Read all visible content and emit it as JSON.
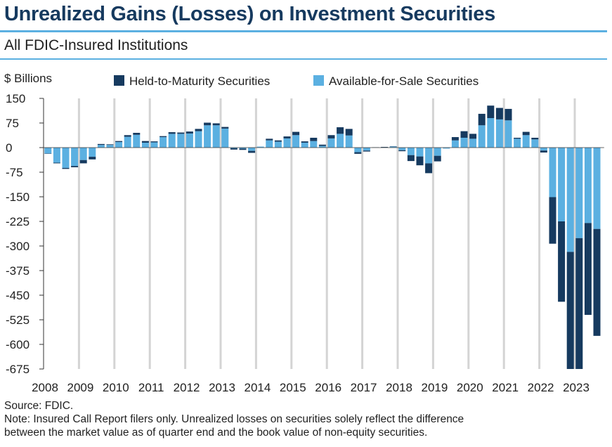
{
  "header": {
    "title": "Unrealized Gains (Losses) on Investment Securities",
    "subtitle": "All FDIC-Insured Institutions"
  },
  "footer": {
    "source": "Source: FDIC.",
    "note_line1": "Note: Insured Call Report filers only. Unrealized losses on securities solely reflect the difference",
    "note_line2": "between the market value as of quarter end and the book value of non-equity securities."
  },
  "colors": {
    "htm": "#163a5f",
    "afs": "#5bb0e1",
    "gridline": "#d4d4d4",
    "accent_rule": "#5bb0e1"
  },
  "chart_data": {
    "type": "bar",
    "stacked": true,
    "ylabel": "$ Billions",
    "ylim": [
      -675,
      150
    ],
    "yticks": [
      150,
      75,
      0,
      -75,
      -150,
      -225,
      -300,
      -375,
      -450,
      -525,
      -600,
      -675
    ],
    "year_labels": [
      "2008",
      "2009",
      "2010",
      "2011",
      "2012",
      "2013",
      "2014",
      "2015",
      "2016",
      "2017",
      "2018",
      "2019",
      "2020",
      "2021",
      "2022",
      "2023"
    ],
    "legend": {
      "position": "top"
    },
    "categories": [
      "2008Q1",
      "2008Q2",
      "2008Q3",
      "2008Q4",
      "2009Q1",
      "2009Q2",
      "2009Q3",
      "2009Q4",
      "2010Q1",
      "2010Q2",
      "2010Q3",
      "2010Q4",
      "2011Q1",
      "2011Q2",
      "2011Q3",
      "2011Q4",
      "2012Q1",
      "2012Q2",
      "2012Q3",
      "2012Q4",
      "2013Q1",
      "2013Q2",
      "2013Q3",
      "2013Q4",
      "2014Q1",
      "2014Q2",
      "2014Q3",
      "2014Q4",
      "2015Q1",
      "2015Q2",
      "2015Q3",
      "2015Q4",
      "2016Q1",
      "2016Q2",
      "2016Q3",
      "2016Q4",
      "2017Q1",
      "2017Q2",
      "2017Q3",
      "2017Q4",
      "2018Q1",
      "2018Q2",
      "2018Q3",
      "2018Q4",
      "2019Q1",
      "2019Q2",
      "2019Q3",
      "2019Q4",
      "2020Q1",
      "2020Q2",
      "2020Q3",
      "2020Q4",
      "2021Q1",
      "2021Q2",
      "2021Q3",
      "2021Q4",
      "2022Q1",
      "2022Q2",
      "2022Q3",
      "2022Q4",
      "2023Q1",
      "2023Q2",
      "2023Q3"
    ],
    "series": [
      {
        "name": "Held-to-Maturity Securities",
        "values": [
          -1,
          -2,
          -3,
          -4,
          -10,
          -8,
          3,
          2,
          3,
          5,
          6,
          5,
          3,
          3,
          5,
          4,
          6,
          7,
          8,
          6,
          5,
          -4,
          -4,
          -6,
          0,
          5,
          4,
          6,
          10,
          4,
          10,
          4,
          10,
          20,
          20,
          -5,
          -3,
          1,
          2,
          1,
          -3,
          -18,
          -27,
          -30,
          -17,
          0,
          10,
          20,
          15,
          35,
          38,
          35,
          35,
          3,
          10,
          5,
          -6,
          -142,
          -245,
          -360,
          -400,
          -280,
          -326
        ]
      },
      {
        "name": "Available-for-Sale Securities",
        "values": [
          -18,
          -46,
          -62,
          -56,
          -38,
          -28,
          8,
          8,
          17,
          33,
          39,
          15,
          16,
          32,
          42,
          42,
          43,
          50,
          68,
          68,
          58,
          -2,
          -3,
          -10,
          3,
          22,
          18,
          28,
          38,
          15,
          20,
          5,
          28,
          42,
          37,
          -14,
          -9,
          0,
          0,
          3,
          -8,
          -23,
          -27,
          -48,
          -25,
          -3,
          22,
          30,
          27,
          68,
          90,
          86,
          83,
          27,
          38,
          25,
          -9,
          -151,
          -225,
          -318,
          -276,
          -230,
          -248
        ]
      }
    ]
  }
}
